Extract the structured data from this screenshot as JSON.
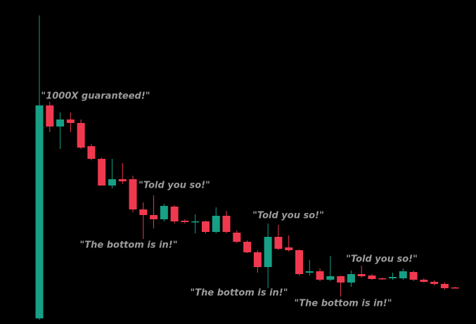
{
  "chart_data": {
    "type": "candlestick",
    "up_color": "#16a085",
    "down_color": "#f0394f",
    "background": "#000000",
    "ylim": [
      0,
      461
    ],
    "open": [
      8,
      311,
      281,
      291,
      286,
      253,
      235,
      197,
      206,
      206,
      163,
      155,
      149,
      167,
      147,
      145,
      146,
      131,
      154,
      130,
      117,
      102,
      81,
      124,
      109,
      105,
      73,
      75,
      63,
      68,
      59,
      71,
      69,
      65,
      65,
      65,
      74,
      63,
      60,
      57,
      52
    ],
    "high": [
      439,
      316,
      301,
      301,
      291,
      256,
      237,
      235,
      229,
      211,
      173,
      183,
      171,
      169,
      149,
      156,
      147,
      166,
      161,
      133,
      119,
      105,
      143,
      141,
      126,
      106,
      91,
      79,
      97,
      69,
      76,
      83,
      71,
      66,
      73,
      79,
      76,
      65,
      62,
      59,
      53
    ],
    "low": [
      6,
      273,
      249,
      273,
      249,
      233,
      197,
      193,
      199,
      159,
      121,
      136,
      146,
      143,
      143,
      129,
      129,
      129,
      129,
      115,
      101,
      73,
      51,
      105,
      103,
      69,
      69,
      61,
      61,
      39,
      53,
      66,
      63,
      63,
      63,
      63,
      61,
      59,
      55,
      49,
      51
    ],
    "close": [
      311,
      281,
      291,
      286,
      251,
      235,
      197,
      206,
      203,
      163,
      155,
      149,
      168,
      146,
      145,
      146,
      131,
      154,
      131,
      117,
      102,
      81,
      124,
      107,
      105,
      71,
      75,
      63,
      68,
      59,
      71,
      68,
      64,
      64,
      67,
      75,
      63,
      60,
      57,
      51,
      51
    ],
    "annotations": [
      "\"1000X guaranteed!\"",
      "\"Told you so!\"",
      "\"The bottom is in!\"",
      "\"Told you so!\"",
      "\"The bottom is in!\"",
      "\"The bottom is in!\"",
      "\"Told you so!\""
    ]
  }
}
